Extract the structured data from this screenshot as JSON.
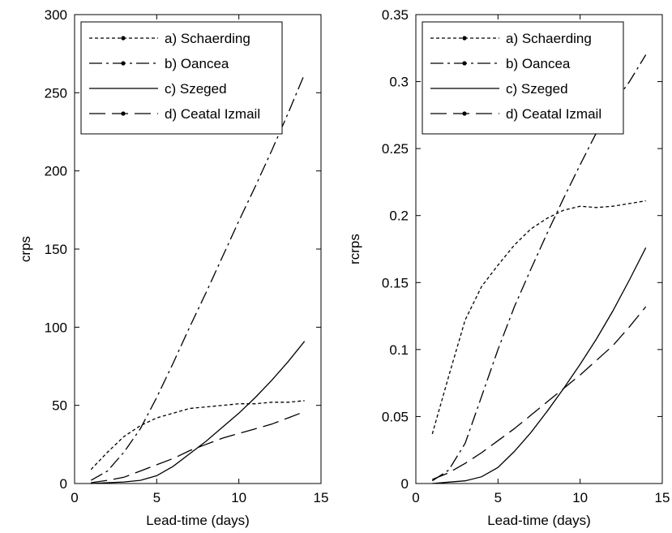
{
  "chart_data": [
    {
      "type": "line",
      "xlabel": "Lead-time (days)",
      "ylabel": "crps",
      "xlim": [
        0,
        15
      ],
      "ylim": [
        0,
        300
      ],
      "xticks": [
        "0",
        "5",
        "10",
        "15"
      ],
      "yticks": [
        "0",
        "50",
        "100",
        "150",
        "200",
        "250",
        "300"
      ],
      "grid": false,
      "legend_position": "top-left",
      "series": [
        {
          "name": "a) Schaerding",
          "style": "dotted",
          "x": [
            1,
            2,
            3,
            4,
            5,
            6,
            7,
            8,
            9,
            10,
            11,
            12,
            13,
            14
          ],
          "y": [
            9,
            20,
            30,
            37,
            42,
            45,
            48,
            49,
            50,
            51,
            51,
            52,
            52,
            53
          ]
        },
        {
          "name": "b) Oancea",
          "style": "dash-dot",
          "x": [
            1,
            2,
            3,
            4,
            5,
            6,
            7,
            8,
            9,
            10,
            11,
            12,
            13,
            14
          ],
          "y": [
            2,
            8,
            20,
            35,
            55,
            77,
            100,
            122,
            145,
            168,
            190,
            213,
            237,
            262
          ]
        },
        {
          "name": "c) Szeged",
          "style": "solid",
          "x": [
            1,
            2,
            3,
            4,
            5,
            6,
            7,
            8,
            9,
            10,
            11,
            12,
            13,
            14
          ],
          "y": [
            0,
            0.5,
            1,
            2,
            5,
            11,
            19,
            27,
            36,
            45,
            55,
            66,
            78,
            91
          ]
        },
        {
          "name": "d) Ceatal Izmail",
          "style": "long-dash",
          "x": [
            1,
            2,
            3,
            4,
            5,
            6,
            7,
            8,
            9,
            10,
            11,
            12,
            13,
            14
          ],
          "y": [
            0.5,
            2,
            4,
            8,
            12,
            16,
            21,
            25,
            29,
            32,
            35,
            38,
            42,
            46
          ]
        }
      ]
    },
    {
      "type": "line",
      "xlabel": "Lead-time (days)",
      "ylabel": "rcrps",
      "xlim": [
        0,
        15
      ],
      "ylim": [
        0,
        0.35
      ],
      "xticks": [
        "0",
        "5",
        "10",
        "15"
      ],
      "yticks": [
        "0",
        "0.05",
        "0.1",
        "0.15",
        "0.2",
        "0.25",
        "0.3",
        "0.35"
      ],
      "grid": false,
      "legend_position": "top-left",
      "series": [
        {
          "name": "a) Schaerding",
          "style": "dotted",
          "x": [
            1,
            2,
            3,
            4,
            5,
            6,
            7,
            8,
            9,
            10,
            11,
            12,
            13,
            14
          ],
          "y": [
            0.037,
            0.08,
            0.122,
            0.147,
            0.163,
            0.178,
            0.19,
            0.198,
            0.204,
            0.207,
            0.206,
            0.207,
            0.209,
            0.211
          ]
        },
        {
          "name": "b) Oancea",
          "style": "dash-dot",
          "x": [
            1,
            2,
            3,
            4,
            5,
            6,
            7,
            8,
            9,
            10,
            11,
            12,
            13,
            14
          ],
          "y": [
            0.002,
            0.01,
            0.03,
            0.065,
            0.1,
            0.132,
            0.16,
            0.187,
            0.213,
            0.238,
            0.262,
            0.283,
            0.3,
            0.32
          ]
        },
        {
          "name": "c) Szeged",
          "style": "solid",
          "x": [
            1,
            2,
            3,
            4,
            5,
            6,
            7,
            8,
            9,
            10,
            11,
            12,
            13,
            14
          ],
          "y": [
            0,
            0.001,
            0.002,
            0.005,
            0.012,
            0.024,
            0.038,
            0.054,
            0.071,
            0.089,
            0.108,
            0.129,
            0.152,
            0.176
          ]
        },
        {
          "name": "d) Ceatal Izmail",
          "style": "long-dash",
          "x": [
            1,
            2,
            3,
            4,
            5,
            6,
            7,
            8,
            9,
            10,
            11,
            12,
            13,
            14
          ],
          "y": [
            0.003,
            0.008,
            0.015,
            0.023,
            0.032,
            0.041,
            0.051,
            0.061,
            0.071,
            0.081,
            0.092,
            0.103,
            0.117,
            0.132
          ]
        }
      ]
    }
  ]
}
